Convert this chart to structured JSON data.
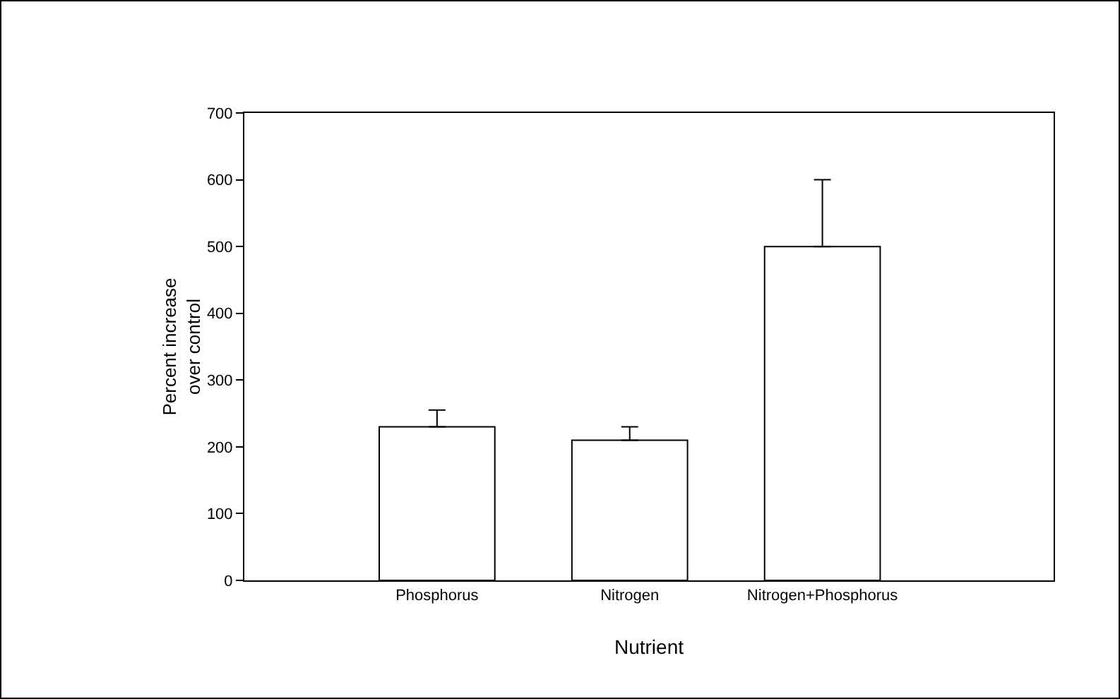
{
  "chart_data": {
    "type": "bar",
    "xlabel": "Nutrient",
    "ylabel": "Percent increase\nover control",
    "categories": [
      "Phosphorus",
      "Nitrogen",
      "Nitrogen+Phosphorus"
    ],
    "values": [
      230,
      210,
      500
    ],
    "color": "#ffffff",
    "errors": [
      [
        230,
        255
      ],
      [
        210,
        230
      ],
      [
        500,
        600
      ]
    ],
    "ylim": [
      0,
      700
    ],
    "yticks": [
      0,
      100,
      200,
      300,
      400,
      500,
      600,
      700
    ],
    "grid": false,
    "legend": false
  }
}
